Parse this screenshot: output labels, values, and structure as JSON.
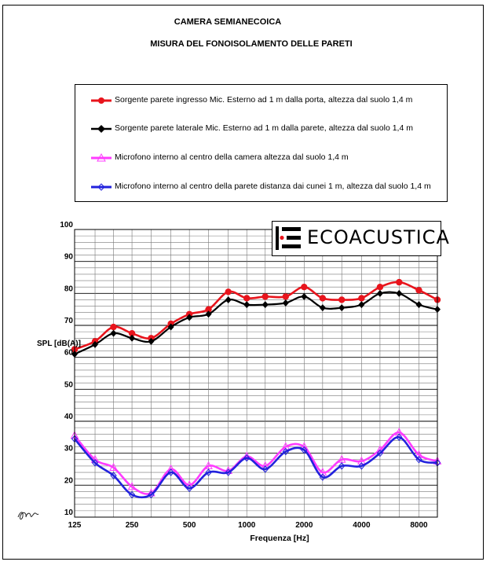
{
  "titles": {
    "line1": "CAMERA SEMIANECOICA",
    "line2": "MISURA DEL FONOISOLAMENTO DELLE PARETI"
  },
  "logo": {
    "text": "ECOACUSTICA"
  },
  "chart_data": {
    "type": "line",
    "xlabel": "Frequenza  [Hz]",
    "ylabel": "SPL   [dB(A)]",
    "ylim": [
      10,
      100
    ],
    "yticks": [
      10,
      20,
      30,
      40,
      50,
      60,
      70,
      80,
      90,
      100
    ],
    "x_scale": "log",
    "xlim": [
      125,
      10000
    ],
    "xtick_labels": [
      "125",
      "250",
      "500",
      "1000",
      "2000",
      "4000",
      "8000"
    ],
    "xticks": [
      125,
      250,
      500,
      1000,
      2000,
      4000,
      8000
    ],
    "grid": true,
    "legend_position": "top",
    "x": [
      125,
      160,
      200,
      250,
      315,
      400,
      500,
      630,
      800,
      1000,
      1250,
      1600,
      2000,
      2500,
      3150,
      4000,
      5000,
      6300,
      8000,
      10000
    ],
    "series": [
      {
        "name": "Sorgente parete ingresso Mic. Esterno ad 1 m dalla porta, altezza  dal suolo 1,4 m",
        "color": "#e8141c",
        "marker": "circle",
        "curve": "smooth",
        "values": [
          62.5,
          65,
          69.5,
          67.5,
          66,
          70.5,
          73.5,
          75,
          80.5,
          78.5,
          79,
          79,
          82,
          78.5,
          78,
          78.5,
          82,
          83.5,
          81,
          78
        ]
      },
      {
        "name": "Sorgente parete laterale Mic. Esterno ad 1 m dalla parete, altezza  dal suolo 1,4 m",
        "color": "#000000",
        "marker": "diamond",
        "curve": "smooth",
        "values": [
          61,
          64,
          67.5,
          66,
          65,
          69.5,
          72.5,
          73.5,
          78,
          76.5,
          76.5,
          77,
          79,
          75.5,
          75.5,
          76.5,
          80,
          80,
          76.5,
          75
        ]
      },
      {
        "name": "Microfono interno al centro della camera altezza dal suolo 1,4 m",
        "color": "#ff3cff",
        "marker": "triangle",
        "curve": "smooth",
        "values": [
          35.5,
          28,
          25.5,
          19.5,
          17.5,
          25,
          20,
          26,
          24.5,
          29,
          26,
          32,
          32,
          24,
          28,
          27.5,
          31,
          36.5,
          29.5,
          27.5
        ]
      },
      {
        "name": "Microfono interno al centro della parete distanza dai cunei 1 m, altezza dal suolo 1,4 m",
        "color": "#2222dd",
        "marker": "diamond-open",
        "curve": "smooth",
        "values": [
          34.5,
          27,
          23,
          17,
          17,
          24,
          19,
          24,
          24,
          28.5,
          25,
          30.5,
          31,
          22.5,
          26,
          26,
          30,
          35,
          28,
          27
        ]
      }
    ]
  }
}
